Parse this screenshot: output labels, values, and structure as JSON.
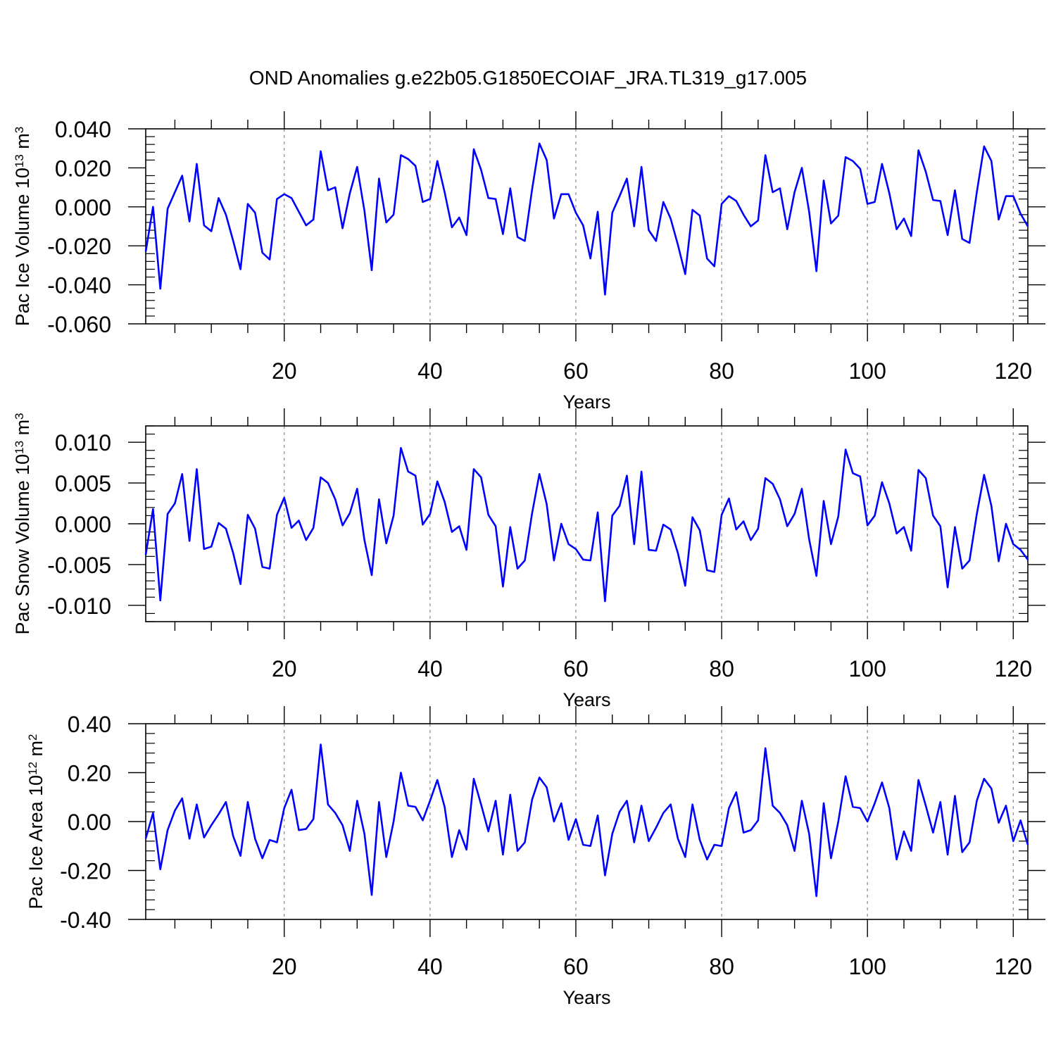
{
  "figure": {
    "title": "OND Anomalies g.e22b05.G1850ECOIAF_JRA.TL319_g17.005"
  },
  "chart_data": [
    {
      "type": "line",
      "ylabel_main": "Pac Ice Volume 10",
      "ylabel_exp": "13",
      "ylabel_unit": " m",
      "ylabel_unit_exp": "3",
      "xlabel": "Years",
      "xlim": [
        1,
        122
      ],
      "ylim": [
        -0.06,
        0.04
      ],
      "yticks": [
        -0.06,
        -0.04,
        -0.02,
        0.0,
        0.02,
        0.04
      ],
      "ytick_labels": [
        "-0.060",
        "-0.040",
        "-0.020",
        "0.000",
        "0.020",
        "0.040"
      ],
      "xticks": [
        20,
        40,
        60,
        80,
        100,
        120
      ],
      "xtick_labels": [
        "20",
        "40",
        "60",
        "80",
        "100",
        "120"
      ],
      "grid_x": [
        20,
        40,
        60,
        80,
        100,
        120
      ],
      "series": [
        {
          "name": "Pac Ice Volume",
          "color": "#0000ff",
          "x_start": 1,
          "values": [
            -0.023,
            0.0,
            -0.042,
            -0.001,
            0.0075,
            0.016,
            -0.0075,
            0.022,
            -0.0095,
            -0.0125,
            0.0045,
            -0.004,
            -0.0175,
            -0.032,
            0.0015,
            -0.003,
            -0.0235,
            -0.027,
            0.004,
            0.0065,
            0.0045,
            -0.0025,
            -0.0095,
            -0.0065,
            0.0285,
            0.0085,
            0.01,
            -0.011,
            0.007,
            0.0205,
            -0.002,
            -0.0325,
            0.0145,
            -0.008,
            -0.004,
            0.0265,
            0.0245,
            0.021,
            0.0025,
            0.004,
            0.0235,
            0.0075,
            -0.0105,
            -0.0055,
            -0.0145,
            0.0295,
            0.019,
            0.0045,
            0.004,
            -0.014,
            0.0095,
            -0.0155,
            -0.0175,
            0.009,
            0.0325,
            0.024,
            -0.006,
            0.0065,
            0.0065,
            -0.003,
            -0.0095,
            -0.0265,
            -0.0025,
            -0.045,
            -0.003,
            0.0055,
            0.0145,
            -0.01,
            0.0205,
            -0.012,
            -0.0175,
            0.0025,
            -0.006,
            -0.0195,
            -0.0345,
            -0.0015,
            -0.0045,
            -0.0265,
            -0.0305,
            0.0015,
            0.0055,
            0.003,
            -0.004,
            -0.01,
            -0.007,
            0.0265,
            0.0075,
            0.0095,
            -0.0115,
            0.0075,
            0.02,
            -0.0025,
            -0.033,
            0.0135,
            -0.0085,
            -0.0045,
            0.0255,
            0.0235,
            0.0195,
            0.0015,
            0.0025,
            0.022,
            0.007,
            -0.0115,
            -0.006,
            -0.015,
            0.029,
            0.018,
            0.0035,
            0.003,
            -0.0145,
            0.0085,
            -0.0165,
            -0.0185,
            0.0075,
            0.031,
            0.0235,
            -0.0065,
            0.0055,
            0.0055,
            -0.0035,
            -0.01
          ]
        }
      ]
    },
    {
      "type": "line",
      "ylabel_main": "Pac Snow Volume 10",
      "ylabel_exp": "13",
      "ylabel_unit": " m",
      "ylabel_unit_exp": "3",
      "xlabel": "Years",
      "xlim": [
        1,
        122
      ],
      "ylim": [
        -0.012,
        0.012
      ],
      "yticks": [
        -0.01,
        -0.005,
        0.0,
        0.005,
        0.01
      ],
      "ytick_labels": [
        "-0.010",
        "-0.005",
        "0.000",
        "0.005",
        "0.010"
      ],
      "xticks": [
        20,
        40,
        60,
        80,
        100,
        120
      ],
      "xtick_labels": [
        "20",
        "40",
        "60",
        "80",
        "100",
        "120"
      ],
      "grid_x": [
        20,
        40,
        60,
        80,
        100,
        120
      ],
      "series": [
        {
          "name": "Pac Snow Volume",
          "color": "#0000ff",
          "x_start": 1,
          "values": [
            -0.0038,
            0.0018,
            -0.0094,
            0.0012,
            0.0025,
            0.0061,
            -0.0021,
            0.0067,
            -0.0031,
            -0.0028,
            0.0001,
            -0.0006,
            -0.0036,
            -0.0074,
            0.0011,
            -0.0006,
            -0.0053,
            -0.0055,
            0.0011,
            0.0032,
            -0.0005,
            0.0004,
            -0.002,
            -0.0005,
            0.0057,
            0.005,
            0.003,
            -0.0002,
            0.0013,
            0.0043,
            -0.002,
            -0.0063,
            0.003,
            -0.0024,
            0.001,
            0.0093,
            0.0064,
            0.0059,
            -0.0001,
            0.0012,
            0.0052,
            0.0027,
            -0.001,
            -0.0003,
            -0.0032,
            0.0067,
            0.0057,
            0.0011,
            -0.0003,
            -0.0077,
            -0.0004,
            -0.0055,
            -0.0045,
            0.0013,
            0.0061,
            0.0024,
            -0.0045,
            0.0,
            -0.0025,
            -0.0031,
            -0.0044,
            -0.0045,
            0.0014,
            -0.0095,
            0.001,
            0.0022,
            0.0059,
            -0.0025,
            0.0064,
            -0.0032,
            -0.0033,
            -0.0001,
            -0.0007,
            -0.0036,
            -0.0076,
            0.0008,
            -0.0008,
            -0.0057,
            -0.0059,
            0.0011,
            0.0031,
            -0.0007,
            0.0003,
            -0.002,
            -0.0006,
            0.0056,
            0.0049,
            0.003,
            -0.0003,
            0.0012,
            0.0043,
            -0.0019,
            -0.0064,
            0.0028,
            -0.0025,
            0.0009,
            0.0091,
            0.0062,
            0.0058,
            -0.0002,
            0.001,
            0.0051,
            0.0025,
            -0.0012,
            -0.0004,
            -0.0033,
            0.0066,
            0.0056,
            0.001,
            -0.0003,
            -0.0078,
            -0.0004,
            -0.0055,
            -0.0045,
            0.0012,
            0.006,
            0.0022,
            -0.0046,
            0.0,
            -0.0025,
            -0.0032,
            -0.0044
          ]
        }
      ]
    },
    {
      "type": "line",
      "ylabel_main": "Pac Ice Area 10",
      "ylabel_exp": "12",
      "ylabel_unit": " m",
      "ylabel_unit_exp": "2",
      "xlabel": "Years",
      "xlim": [
        1,
        122
      ],
      "ylim": [
        -0.4,
        0.4
      ],
      "yticks": [
        -0.4,
        -0.2,
        0.0,
        0.2,
        0.4
      ],
      "ytick_labels": [
        "-0.40",
        "-0.20",
        "0.00",
        "0.20",
        "0.40"
      ],
      "xticks": [
        20,
        40,
        60,
        80,
        100,
        120
      ],
      "xtick_labels": [
        "20",
        "40",
        "60",
        "80",
        "100",
        "120"
      ],
      "grid_x": [
        20,
        40,
        60,
        80,
        100,
        120
      ],
      "series": [
        {
          "name": "Pac Ice Area",
          "color": "#0000ff",
          "x_start": 1,
          "values": [
            -0.07,
            0.035,
            -0.195,
            -0.035,
            0.045,
            0.095,
            -0.07,
            0.07,
            -0.065,
            -0.015,
            0.03,
            0.08,
            -0.06,
            -0.14,
            0.08,
            -0.07,
            -0.15,
            -0.075,
            -0.085,
            0.055,
            0.13,
            -0.035,
            -0.03,
            0.01,
            0.315,
            0.07,
            0.035,
            -0.015,
            -0.12,
            0.085,
            -0.05,
            -0.3,
            0.08,
            -0.145,
            0.0,
            0.2,
            0.065,
            0.06,
            0.005,
            0.085,
            0.17,
            0.06,
            -0.145,
            -0.035,
            -0.115,
            0.175,
            0.07,
            -0.04,
            0.085,
            -0.135,
            0.11,
            -0.12,
            -0.085,
            0.09,
            0.18,
            0.14,
            0.0,
            0.075,
            -0.075,
            0.01,
            -0.095,
            -0.1,
            0.025,
            -0.22,
            -0.05,
            0.04,
            0.085,
            -0.085,
            0.065,
            -0.08,
            -0.025,
            0.035,
            0.07,
            -0.07,
            -0.145,
            0.07,
            -0.075,
            -0.155,
            -0.095,
            -0.1,
            0.055,
            0.12,
            -0.045,
            -0.035,
            0.005,
            0.3,
            0.065,
            0.035,
            -0.015,
            -0.12,
            0.085,
            -0.05,
            -0.305,
            0.075,
            -0.15,
            0.0,
            0.185,
            0.06,
            0.055,
            0.0,
            0.075,
            0.16,
            0.055,
            -0.155,
            -0.04,
            -0.12,
            0.17,
            0.065,
            -0.045,
            0.08,
            -0.135,
            0.105,
            -0.125,
            -0.085,
            0.085,
            0.175,
            0.135,
            -0.005,
            0.065,
            -0.08,
            0.005,
            -0.095
          ]
        }
      ]
    }
  ]
}
